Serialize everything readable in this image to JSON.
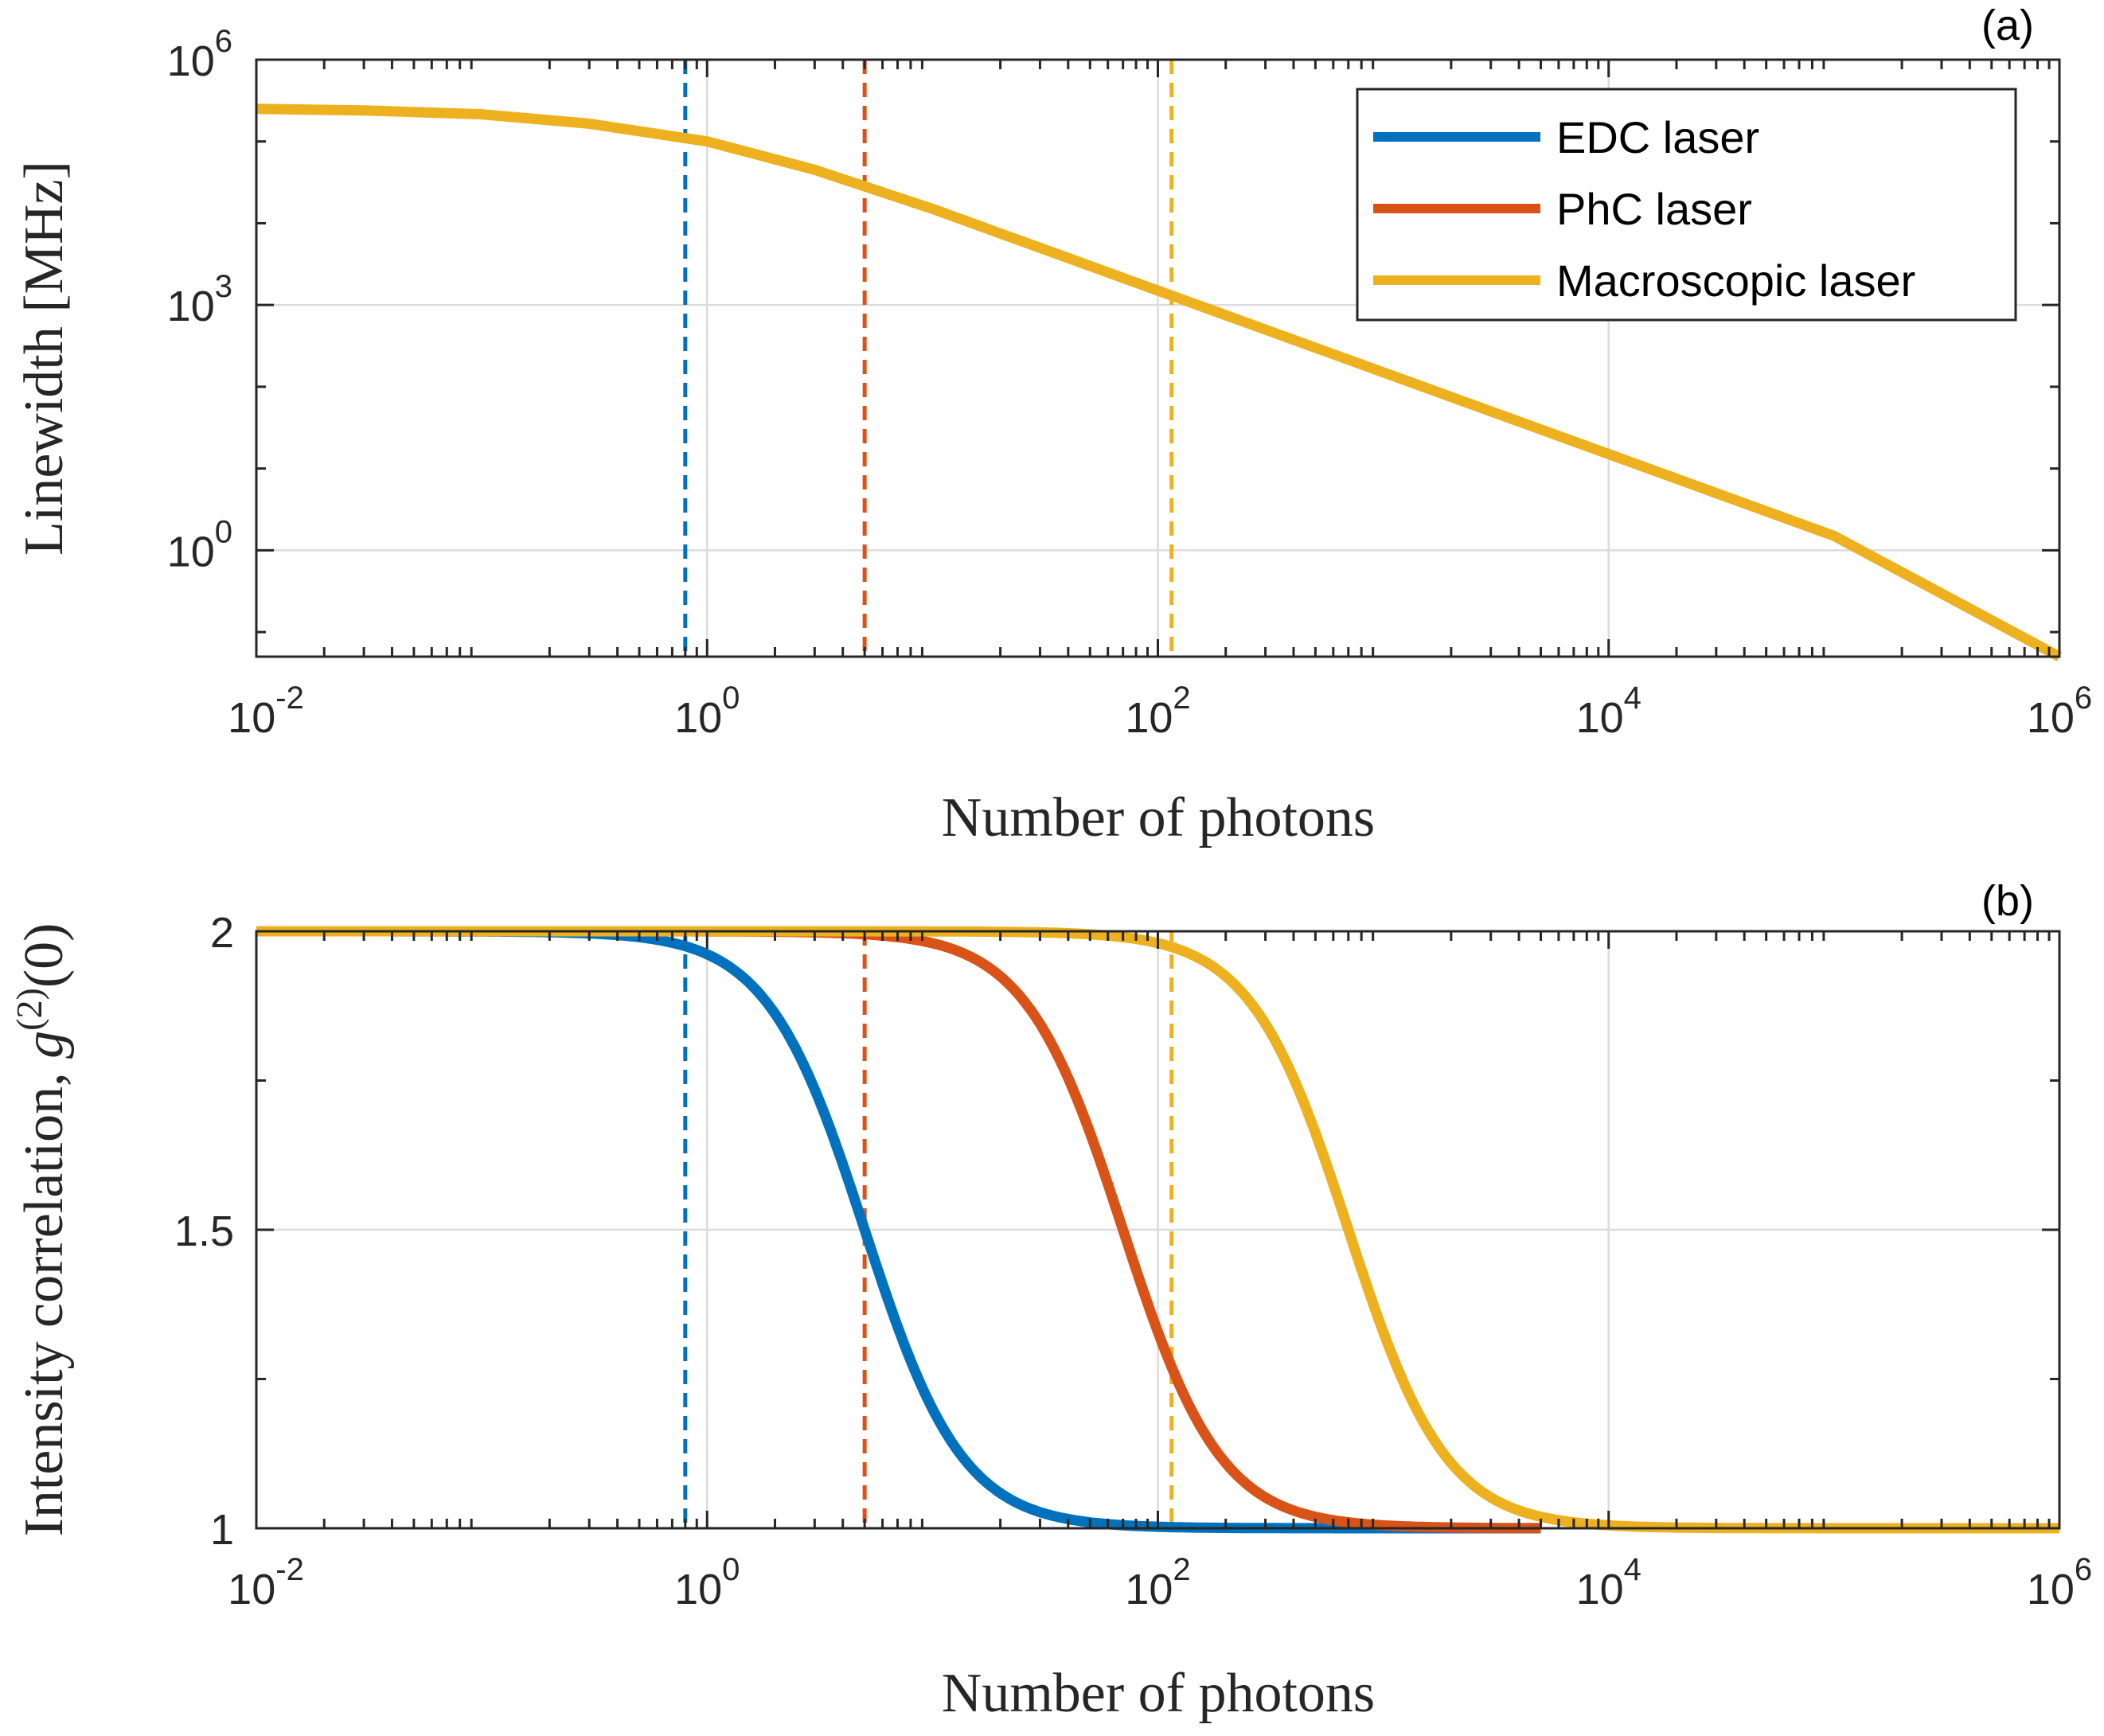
{
  "colors": {
    "edc": "#0072BD",
    "phc": "#D95319",
    "macro": "#EDB120",
    "axis": "#262626",
    "grid": "#dcdcdc"
  },
  "chart_data": [
    {
      "panel": "(a)",
      "type": "line",
      "xscale": "log",
      "yscale": "log",
      "xlim": [
        0.01,
        1000000
      ],
      "ylim": [
        0.05,
        1000000
      ],
      "xticks": [
        0.01,
        1,
        100,
        10000,
        1000000
      ],
      "xtick_labels": [
        {
          "base": "10",
          "exp": "-2"
        },
        {
          "base": "10",
          "exp": "0"
        },
        {
          "base": "10",
          "exp": "2"
        },
        {
          "base": "10",
          "exp": "4"
        },
        {
          "base": "10",
          "exp": "6"
        }
      ],
      "yticks": [
        1,
        1000,
        1000000
      ],
      "ytick_labels": [
        {
          "base": "10",
          "exp": "0"
        },
        {
          "base": "10",
          "exp": "3"
        },
        {
          "base": "10",
          "exp": "6"
        }
      ],
      "xlabel": "Number of photons",
      "ylabel": "Linewidth [MHz]",
      "legend": {
        "position": "top-right",
        "entries": [
          "EDC laser",
          "PhC laser",
          "Macroscopic laser"
        ]
      },
      "series": [
        {
          "name": "Macroscopic laser",
          "color_key": "macro",
          "x": [
            0.01,
            0.03,
            0.1,
            0.3,
            1,
            3,
            10,
            30,
            100,
            1000,
            10000,
            100000,
            1000000
          ],
          "y": [
            250000,
            240000,
            215000,
            165000,
            100000,
            45000,
            15000,
            5000,
            1500,
            150,
            15,
            1.5,
            0.05
          ]
        }
      ],
      "vlines": [
        {
          "x": 0.8,
          "color_key": "edc"
        },
        {
          "x": 5,
          "color_key": "phc"
        },
        {
          "x": 115,
          "color_key": "macro"
        }
      ]
    },
    {
      "panel": "(b)",
      "type": "line",
      "xscale": "log",
      "yscale": "linear",
      "xlim": [
        0.01,
        1000000
      ],
      "ylim": [
        1,
        2
      ],
      "xticks": [
        0.01,
        1,
        100,
        10000,
        1000000
      ],
      "xtick_labels": [
        {
          "base": "10",
          "exp": "-2"
        },
        {
          "base": "10",
          "exp": "0"
        },
        {
          "base": "10",
          "exp": "2"
        },
        {
          "base": "10",
          "exp": "4"
        },
        {
          "base": "10",
          "exp": "6"
        }
      ],
      "yticks": [
        1,
        1.5,
        2
      ],
      "ytick_labels": [
        "1",
        "1.5",
        "2"
      ],
      "xlabel": "Number of photons",
      "ylabel": "Intensity correlation, g(2)(0)",
      "series": [
        {
          "name": "EDC laser",
          "color_key": "edc",
          "n0": 5,
          "xmax": 5000
        },
        {
          "name": "PhC laser",
          "color_key": "phc",
          "n0": 70,
          "xmax": 5000
        },
        {
          "name": "Macroscopic laser",
          "color_key": "macro",
          "n0": 700,
          "xmax": 1000000
        }
      ],
      "vlines": [
        {
          "x": 0.8,
          "color_key": "edc"
        },
        {
          "x": 5,
          "color_key": "phc"
        },
        {
          "x": 115,
          "color_key": "macro"
        }
      ]
    }
  ],
  "ylabel_b_parts": {
    "prefix": "Intensity correlation, ",
    "g": "g",
    "sup": "(2)",
    "suffix": "(0)"
  }
}
